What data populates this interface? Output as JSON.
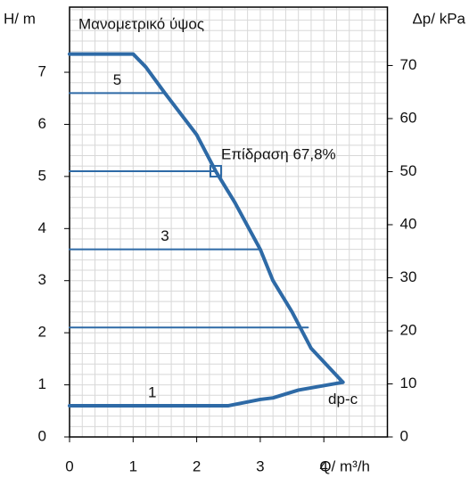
{
  "chart_data": {
    "type": "line",
    "title": "Μανομετρικό ύψος",
    "ylabel": "H/ m",
    "y2label": "Δp/ kPa",
    "xlabel": "Q/ m³/h",
    "xlim": [
      0,
      5
    ],
    "xticks": [
      0,
      1,
      2,
      3,
      4
    ],
    "ylim": [
      0,
      8.25
    ],
    "yticks": [
      0,
      1,
      2,
      3,
      4,
      5,
      6,
      7
    ],
    "y2lim": [
      0,
      81
    ],
    "y2ticks": [
      0,
      10,
      20,
      30,
      40,
      50,
      60,
      70
    ],
    "grid": true,
    "minor_grid_step": 0.2,
    "color": "#2e6aa6",
    "series": [
      {
        "x": [
          0,
          1,
          1.2,
          1.5,
          2,
          2.3,
          2.6,
          3,
          3.2,
          3.5,
          3.8,
          4.3
        ],
        "values": [
          7.35,
          7.35,
          7.1,
          6.6,
          5.8,
          5.1,
          4.5,
          3.6,
          3.0,
          2.4,
          1.7,
          1.05
        ],
        "width": 4
      },
      {
        "name": "1",
        "x": [
          4.3,
          3.6,
          3.2,
          3.0,
          2.5,
          0
        ],
        "values": [
          1.05,
          0.9,
          0.75,
          0.72,
          0.6,
          0.6
        ],
        "width": 4
      },
      {
        "name": "5",
        "x": [
          0,
          1.5
        ],
        "values": [
          6.6,
          6.6
        ],
        "width": 2
      },
      {
        "x": [
          0,
          2.3
        ],
        "values": [
          5.1,
          5.1
        ],
        "width": 2
      },
      {
        "name": "3",
        "x": [
          0,
          3.0
        ],
        "values": [
          3.6,
          3.6
        ],
        "width": 2
      },
      {
        "x": [
          0,
          3.75
        ],
        "values": [
          2.1,
          2.1
        ],
        "width": 2
      }
    ],
    "point": {
      "x": 2.3,
      "y": 5.1,
      "label": "Επίδραση 67,8%"
    },
    "annotation": "dp-c"
  }
}
